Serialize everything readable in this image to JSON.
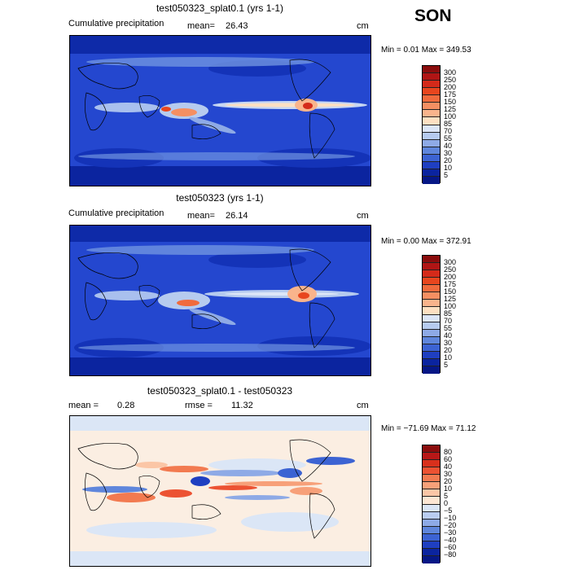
{
  "season": "SON",
  "panels": [
    {
      "title": "test050323_splat0.1 (yrs 1-1)",
      "variable": "Cumulative precipitation",
      "mean_label": "mean=",
      "mean_value": "26.43",
      "units": "cm",
      "minmax": "Min =    0.01 Max = 349.53",
      "colorbar": {
        "labels": [
          "300",
          "250",
          "200",
          "175",
          "150",
          "125",
          "100",
          "85",
          "70",
          "55",
          "40",
          "30",
          "20",
          "10",
          "5"
        ],
        "colors": [
          "#8b0d0d",
          "#b01515",
          "#d42a1a",
          "#e8461e",
          "#f06a3c",
          "#f58f62",
          "#f9b48c",
          "#fde0c2",
          "#dce6f7",
          "#b6cbef",
          "#8eaae6",
          "#5f86dc",
          "#3c63d3",
          "#1f3fc1",
          "#0b249f",
          "#061786"
        ]
      }
    },
    {
      "title": "test050323 (yrs 1-1)",
      "variable": "Cumulative precipitation",
      "mean_label": "mean=",
      "mean_value": "26.14",
      "units": "cm",
      "minmax": "Min =    0.00 Max = 372.91",
      "colorbar": {
        "labels": [
          "300",
          "250",
          "200",
          "175",
          "150",
          "125",
          "100",
          "85",
          "70",
          "55",
          "40",
          "30",
          "20",
          "10",
          "5"
        ],
        "colors": [
          "#8b0d0d",
          "#b01515",
          "#d42a1a",
          "#e8461e",
          "#f06a3c",
          "#f58f62",
          "#f9b48c",
          "#fde0c2",
          "#dce6f7",
          "#b6cbef",
          "#8eaae6",
          "#5f86dc",
          "#3c63d3",
          "#1f3fc1",
          "#0b249f",
          "#061786"
        ]
      }
    },
    {
      "title": "test050323_splat0.1 - test050323",
      "mean_label": "mean =",
      "mean_value": "0.28",
      "rmse_label": "rmse =",
      "rmse_value": "11.32",
      "units": "cm",
      "minmax": "Min = −71.69 Max =   71.12",
      "colorbar": {
        "labels": [
          "80",
          "60",
          "40",
          "30",
          "20",
          "10",
          "5",
          "0",
          "−5",
          "−10",
          "−20",
          "−30",
          "−40",
          "−60",
          "−80"
        ],
        "colors": [
          "#8b0d0d",
          "#b81818",
          "#d8301c",
          "#ec5232",
          "#f27a50",
          "#f7a079",
          "#fbc6a6",
          "#fde6d3",
          "#dbe6f6",
          "#b9ccf0",
          "#8eaae6",
          "#5f86dc",
          "#3c63d3",
          "#1f3fc1",
          "#0b249f",
          "#061786"
        ]
      }
    }
  ]
}
